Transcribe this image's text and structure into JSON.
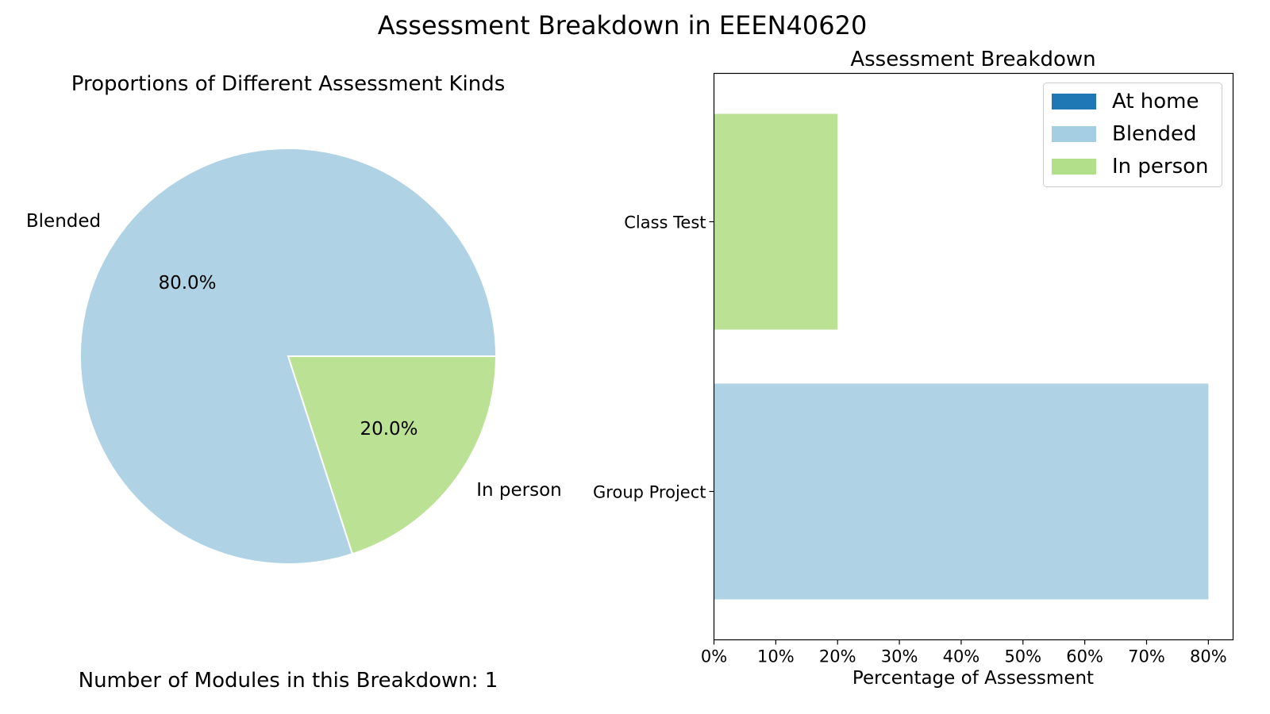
{
  "figure": {
    "title": "Assessment Breakdown in EEEN40620",
    "footer": "Number of Modules in this Breakdown: 1"
  },
  "colors": {
    "at_home": "#1f78b4",
    "blended": "#a6cee3",
    "in_person": "#b2df8a",
    "pie_blended": "#afd2e4",
    "pie_in_person": "#bbe194"
  },
  "chart_data": [
    {
      "type": "pie",
      "title": "Proportions of Different Assessment Kinds",
      "slices": [
        {
          "label": "Blended",
          "value": 80.0,
          "pct_label": "80.0%",
          "color": "#afd2e4"
        },
        {
          "label": "In person",
          "value": 20.0,
          "pct_label": "20.0%",
          "color": "#bbe194"
        }
      ]
    },
    {
      "type": "bar",
      "orientation": "horizontal",
      "title": "Assessment Breakdown",
      "xlabel": "Percentage of Assessment",
      "ylabel": "",
      "xlim": [
        0,
        84
      ],
      "xticks": [
        0,
        10,
        20,
        30,
        40,
        50,
        60,
        70,
        80
      ],
      "xtick_labels": [
        "0%",
        "10%",
        "20%",
        "30%",
        "40%",
        "50%",
        "60%",
        "70%",
        "80%"
      ],
      "categories": [
        "Class Test",
        "Group Project"
      ],
      "bars": [
        {
          "category": "Class Test",
          "value": 20,
          "series": "In person"
        },
        {
          "category": "Group Project",
          "value": 80,
          "series": "Blended"
        }
      ],
      "legend": {
        "position": "top-right",
        "entries": [
          {
            "name": "At home",
            "color": "#1f78b4"
          },
          {
            "name": "Blended",
            "color": "#a6cee3"
          },
          {
            "name": "In person",
            "color": "#b2df8a"
          }
        ]
      },
      "grid": false
    }
  ]
}
